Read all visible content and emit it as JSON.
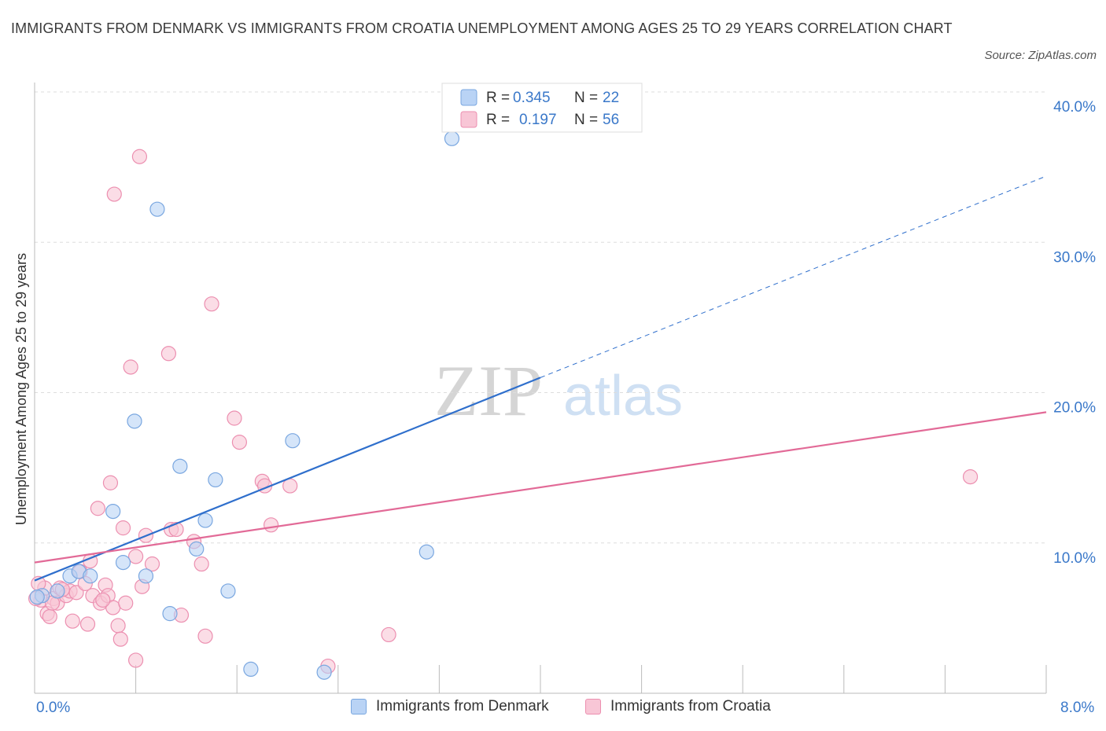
{
  "title": "IMMIGRANTS FROM DENMARK VS IMMIGRANTS FROM CROATIA UNEMPLOYMENT AMONG AGES 25 TO 29 YEARS CORRELATION CHART",
  "source": "Source: ZipAtlas.com",
  "watermark": {
    "zip": "ZIP",
    "atlas": "atlas"
  },
  "colors": {
    "blue_fill": "#b9d3f5",
    "blue_stroke": "#7aa7e0",
    "blue_line": "#2f6fcc",
    "pink_fill": "#f8c6d6",
    "pink_stroke": "#ec8fb0",
    "pink_line": "#e26a97",
    "tick_label": "#3a78c9",
    "grid": "#dddddd"
  },
  "legend_top": [
    {
      "r_label": "R =",
      "r_value": "0.345",
      "n_label": "N =",
      "n_value": "22"
    },
    {
      "r_label": "R =",
      "r_value": "0.197",
      "n_label": "N =",
      "n_value": "56"
    }
  ],
  "chart_data": {
    "type": "scatter",
    "title": "IMMIGRANTS FROM DENMARK VS IMMIGRANTS FROM CROATIA UNEMPLOYMENT AMONG AGES 25 TO 29 YEARS CORRELATION CHART",
    "xlabel": "",
    "ylabel": "Unemployment Among Ages 25 to 29 years",
    "xlim": [
      0,
      8
    ],
    "ylim": [
      0,
      40
    ],
    "x_tick_labels": [
      "0.0%",
      "8.0%"
    ],
    "y_ticks": [
      10,
      20,
      30,
      40
    ],
    "y_tick_labels": [
      "10.0%",
      "20.0%",
      "30.0%",
      "40.0%"
    ],
    "grid": true,
    "legend_placement": "bottom-center",
    "series": [
      {
        "name": "Immigrants from Denmark",
        "color": "blue",
        "R": 0.345,
        "N": 22,
        "trend": {
          "x": [
            0.0,
            4.0
          ],
          "y": [
            7.5,
            21.0
          ],
          "dashed_to": [
            8.0,
            34.4
          ]
        },
        "points": [
          [
            0.06,
            6.5
          ],
          [
            0.18,
            6.8
          ],
          [
            0.28,
            7.8
          ],
          [
            0.35,
            8.1
          ],
          [
            0.44,
            7.8
          ],
          [
            0.62,
            12.1
          ],
          [
            0.7,
            8.7
          ],
          [
            0.79,
            18.1
          ],
          [
            0.88,
            7.8
          ],
          [
            0.97,
            32.2
          ],
          [
            1.07,
            5.3
          ],
          [
            1.15,
            15.1
          ],
          [
            1.28,
            9.6
          ],
          [
            1.35,
            11.5
          ],
          [
            1.43,
            14.2
          ],
          [
            1.53,
            6.8
          ],
          [
            1.71,
            1.6
          ],
          [
            2.04,
            16.8
          ],
          [
            2.29,
            1.4
          ],
          [
            3.1,
            9.4
          ],
          [
            3.3,
            36.9
          ],
          [
            0.02,
            6.4
          ]
        ]
      },
      {
        "name": "Immigrants from Croatia",
        "color": "pink",
        "R": 0.197,
        "N": 56,
        "trend": {
          "x": [
            0.0,
            8.0
          ],
          "y": [
            8.7,
            18.7
          ]
        },
        "points": [
          [
            0.05,
            6.2
          ],
          [
            0.08,
            7.0
          ],
          [
            0.1,
            5.3
          ],
          [
            0.12,
            5.1
          ],
          [
            0.15,
            6.3
          ],
          [
            0.18,
            6.0
          ],
          [
            0.2,
            7.0
          ],
          [
            0.25,
            6.5
          ],
          [
            0.28,
            6.8
          ],
          [
            0.3,
            4.8
          ],
          [
            0.33,
            6.7
          ],
          [
            0.36,
            8.1
          ],
          [
            0.4,
            7.3
          ],
          [
            0.42,
            4.6
          ],
          [
            0.44,
            8.8
          ],
          [
            0.46,
            6.5
          ],
          [
            0.5,
            12.3
          ],
          [
            0.52,
            6.0
          ],
          [
            0.56,
            7.2
          ],
          [
            0.58,
            6.5
          ],
          [
            0.6,
            14.0
          ],
          [
            0.62,
            5.7
          ],
          [
            0.63,
            33.2
          ],
          [
            0.66,
            4.5
          ],
          [
            0.68,
            3.6
          ],
          [
            0.7,
            11.0
          ],
          [
            0.76,
            21.7
          ],
          [
            0.8,
            9.1
          ],
          [
            0.8,
            2.2
          ],
          [
            0.83,
            35.7
          ],
          [
            0.85,
            7.1
          ],
          [
            0.88,
            10.5
          ],
          [
            0.93,
            8.6
          ],
          [
            1.06,
            22.6
          ],
          [
            1.08,
            10.9
          ],
          [
            1.12,
            10.9
          ],
          [
            1.16,
            5.2
          ],
          [
            1.26,
            10.1
          ],
          [
            1.32,
            8.6
          ],
          [
            1.35,
            3.8
          ],
          [
            1.4,
            25.9
          ],
          [
            1.58,
            18.3
          ],
          [
            1.62,
            16.7
          ],
          [
            1.8,
            14.1
          ],
          [
            1.82,
            13.8
          ],
          [
            1.87,
            11.2
          ],
          [
            2.02,
            13.8
          ],
          [
            2.32,
            1.8
          ],
          [
            2.8,
            3.9
          ],
          [
            7.4,
            14.4
          ],
          [
            0.01,
            6.3
          ],
          [
            0.03,
            7.3
          ],
          [
            0.14,
            6.0
          ],
          [
            0.22,
            6.9
          ],
          [
            0.54,
            6.2
          ],
          [
            0.72,
            6.0
          ]
        ]
      }
    ]
  },
  "legend_bottom": [
    "Immigrants from Denmark",
    "Immigrants from Croatia"
  ]
}
